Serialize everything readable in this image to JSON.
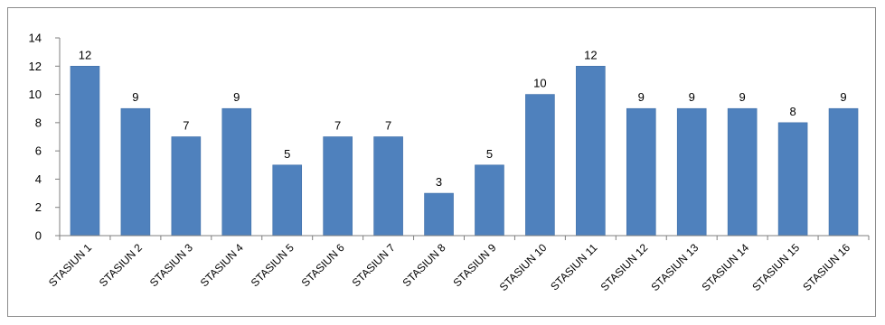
{
  "chart_data": {
    "type": "bar",
    "categories": [
      "STASIUN 1",
      "STASIUN 2",
      "STASIUN 3",
      "STASIUN 4",
      "STASIUN 5",
      "STASIUN 6",
      "STASIUN 7",
      "STASIUN 8",
      "STASIUN 9",
      "STASIUN 10",
      "STASIUN 11",
      "STASIUN 12",
      "STASIUN 13",
      "STASIUN 14",
      "STASIUN 15",
      "STASIUN 16"
    ],
    "values": [
      12,
      9,
      7,
      9,
      5,
      7,
      7,
      3,
      5,
      10,
      12,
      9,
      9,
      9,
      8,
      9
    ],
    "ylim": [
      0,
      14
    ],
    "yticks": [
      0,
      2,
      4,
      6,
      8,
      10,
      12,
      14
    ],
    "grid": false,
    "legend": "none",
    "colors": {
      "bar": "#4f81bd",
      "bar_edge": "#3f6fa8",
      "axis": "#7f7f7f"
    }
  }
}
